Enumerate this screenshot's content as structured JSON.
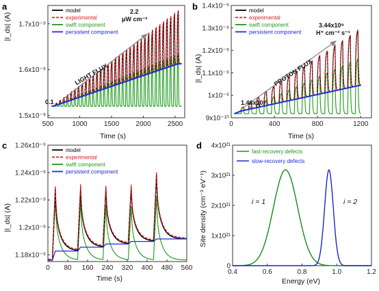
{
  "chart_data": [
    {
      "panel": "a",
      "type": "line",
      "xlabel": "Time (s)",
      "ylabel": "|I_ds| (A)",
      "xticks": [
        "500",
        "1000",
        "1500",
        "2000",
        "2500"
      ],
      "yticks": [
        "1.5x10⁻⁹",
        "1.6x10⁻⁹",
        "1.7x10⁻⁹"
      ],
      "xlim": [
        500,
        2650
      ],
      "ylim": [
        1.495,
        1.74
      ],
      "legend": [
        "model",
        "experimental",
        "swift component",
        "persistent component"
      ],
      "legend_position": "top-left",
      "annotations": {
        "start": "0.1",
        "arrow": "LIGHT FLUX",
        "end_line1": "2.2",
        "end_line2": "μW cm⁻²"
      },
      "pulses": {
        "count": 34,
        "t_start": 620,
        "t_end": 2530
      },
      "persistent": {
        "x": [
          560,
          620,
          2530,
          2600
        ],
        "y": [
          1.52,
          1.522,
          1.612,
          1.613
        ]
      },
      "swift_peak": {
        "start": 0.004,
        "end": 0.115
      },
      "series": [
        {
          "name": "model",
          "color": "#000000"
        },
        {
          "name": "experimental",
          "color": "#e11d1d"
        },
        {
          "name": "swift component",
          "color": "#1a9a1a"
        },
        {
          "name": "persistent component",
          "color": "#1f2ad6"
        }
      ]
    },
    {
      "panel": "b",
      "type": "line",
      "xlabel": "Time (s)",
      "ylabel": "|I_ds| (A)",
      "xticks": [
        "0",
        "400",
        "800",
        "1200"
      ],
      "yticks": [
        "9x10⁻¹⁰",
        "1x10⁻⁹",
        "1.1x10⁻⁹",
        "1.2x10⁻⁹",
        "1.3x10⁻⁹",
        "1.4x10⁻⁹"
      ],
      "xlim": [
        0,
        1300
      ],
      "ylim": [
        0.9,
        1.4
      ],
      "legend": [
        "model",
        "experimental",
        "swift component",
        "persistent component"
      ],
      "legend_position": "top-left",
      "annotations": {
        "start": "1.46x10⁸",
        "arrow": "PROTON FLUX",
        "end_line1": "3.44x10⁹",
        "end_line2": "H⁺ cm⁻² s⁻¹"
      },
      "pulses": {
        "count": 16,
        "t_start": 90,
        "t_end": 1150
      },
      "persistent": {
        "x": [
          30,
          90,
          1150,
          1200
        ],
        "y": [
          0.918,
          0.93,
          1.04,
          1.045
        ]
      },
      "swift_peak": {
        "start": 0.015,
        "end": 0.245
      },
      "series": [
        {
          "name": "model",
          "color": "#000000"
        },
        {
          "name": "experimental",
          "color": "#e11d1d"
        },
        {
          "name": "swift component",
          "color": "#1a9a1a"
        },
        {
          "name": "persistent component",
          "color": "#1f2ad6"
        }
      ]
    },
    {
      "panel": "c",
      "type": "line",
      "xlabel": "Time (s)",
      "ylabel": "|I_ds| (A)",
      "xticks": [
        "0",
        "80",
        "160",
        "240",
        "320",
        "400",
        "480",
        "560"
      ],
      "yticks": [
        "1.18x10⁻⁹",
        "1.2x10⁻⁹",
        "1.22x10⁻⁹",
        "1.24x10⁻⁹",
        "1.26x10⁻⁹"
      ],
      "xlim": [
        0,
        560
      ],
      "ylim": [
        1.175,
        1.26
      ],
      "legend": [
        "model",
        "experimental",
        "swift component",
        "persistent component"
      ],
      "legend_position": "top-left",
      "pulse_times": [
        18,
        120,
        222,
        324,
        426
      ],
      "peaks": [
        1.228,
        1.229,
        1.228,
        1.229,
        1.238
      ],
      "persistent_levels": [
        1.176,
        1.1827,
        1.1855,
        1.1878,
        1.1897,
        1.1915
      ],
      "series": [
        {
          "name": "model",
          "color": "#000000"
        },
        {
          "name": "experimental",
          "color": "#e11d1d"
        },
        {
          "name": "swift component",
          "color": "#1a9a1a"
        },
        {
          "name": "persistent component",
          "color": "#1f2ad6"
        }
      ]
    },
    {
      "panel": "d",
      "type": "line",
      "xlabel": "Energy (eV)",
      "ylabel": "Site density (cm⁻³ eV⁻¹)",
      "xticks": [
        "0.4",
        "0.6",
        "0.8",
        "1.0",
        "1.2"
      ],
      "yticks": [
        "0",
        "1x10²¹",
        "2x10²¹",
        "3x10²¹",
        "4x10²¹"
      ],
      "xlim": [
        0.4,
        1.2
      ],
      "ylim": [
        0,
        4
      ],
      "legend": [
        "fast-recovery defects",
        "slow-recovery defects"
      ],
      "legend_position": "top-left",
      "annotations": {
        "peak1": "i = 1",
        "peak2": "i = 2"
      },
      "series": [
        {
          "name": "fast-recovery defects",
          "color": "#1a9a1a",
          "center": 0.705,
          "sigma": 0.07,
          "peak": 3.18
        },
        {
          "name": "slow-recovery defects",
          "color": "#1f2ad6",
          "center": 0.955,
          "sigma": 0.025,
          "peak": 3.18
        }
      ]
    }
  ],
  "panel_labels": [
    "a",
    "b",
    "c",
    "d"
  ]
}
